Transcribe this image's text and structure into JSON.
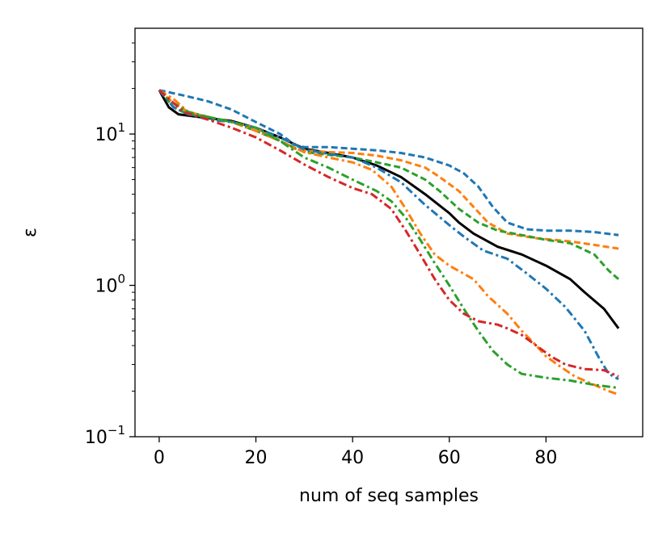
{
  "chart_data": {
    "type": "line",
    "title": "",
    "xlabel": "num of seq samples",
    "ylabel": "ε",
    "xlim": [
      -5,
      100
    ],
    "ylim": [
      0.1,
      50
    ],
    "yscale": "log",
    "grid": false,
    "x_ticks": [
      0,
      20,
      40,
      60,
      80
    ],
    "y_ticks": [
      {
        "value": 0.1,
        "base": "10",
        "exp": "−1"
      },
      {
        "value": 1,
        "base": "10",
        "exp": "0"
      },
      {
        "value": 10,
        "base": "10",
        "exp": "1"
      }
    ],
    "series": [
      {
        "name": "solid-black",
        "color": "#000000",
        "dash": "solid",
        "points": [
          [
            0,
            19.5
          ],
          [
            2,
            15
          ],
          [
            4,
            13.5
          ],
          [
            8,
            13
          ],
          [
            15,
            12.2
          ],
          [
            20,
            11
          ],
          [
            25,
            9.5
          ],
          [
            30,
            8
          ],
          [
            35,
            7.5
          ],
          [
            40,
            7
          ],
          [
            45,
            6.2
          ],
          [
            50,
            5.2
          ],
          [
            55,
            4
          ],
          [
            60,
            3
          ],
          [
            62,
            2.6
          ],
          [
            65,
            2.2
          ],
          [
            70,
            1.8
          ],
          [
            75,
            1.6
          ],
          [
            80,
            1.35
          ],
          [
            85,
            1.1
          ],
          [
            88,
            0.9
          ],
          [
            92,
            0.7
          ],
          [
            95,
            0.52
          ]
        ]
      },
      {
        "name": "blue-dashed",
        "color": "#1f77b4",
        "dash": "dashed",
        "points": [
          [
            0,
            19.5
          ],
          [
            5,
            18
          ],
          [
            10,
            16.5
          ],
          [
            15,
            14.5
          ],
          [
            20,
            12
          ],
          [
            25,
            10
          ],
          [
            28,
            8.5
          ],
          [
            30,
            8.2
          ],
          [
            35,
            8.2
          ],
          [
            40,
            8
          ],
          [
            45,
            7.8
          ],
          [
            50,
            7.5
          ],
          [
            55,
            7
          ],
          [
            60,
            6.2
          ],
          [
            63,
            5.5
          ],
          [
            66,
            4.5
          ],
          [
            69,
            3.3
          ],
          [
            72,
            2.6
          ],
          [
            76,
            2.35
          ],
          [
            80,
            2.3
          ],
          [
            85,
            2.3
          ],
          [
            90,
            2.25
          ],
          [
            95,
            2.15
          ]
        ]
      },
      {
        "name": "orange-dashed",
        "color": "#ff7f0e",
        "dash": "dashed",
        "points": [
          [
            0,
            19.5
          ],
          [
            3,
            16
          ],
          [
            6,
            14
          ],
          [
            10,
            13
          ],
          [
            15,
            12
          ],
          [
            20,
            11
          ],
          [
            25,
            9
          ],
          [
            28,
            8
          ],
          [
            30,
            7.8
          ],
          [
            35,
            7.6
          ],
          [
            40,
            7.5
          ],
          [
            45,
            7.2
          ],
          [
            50,
            6.7
          ],
          [
            55,
            6
          ],
          [
            58,
            5.2
          ],
          [
            62,
            4.2
          ],
          [
            65,
            3.3
          ],
          [
            68,
            2.6
          ],
          [
            72,
            2.2
          ],
          [
            78,
            2.05
          ],
          [
            85,
            1.95
          ],
          [
            90,
            1.85
          ],
          [
            95,
            1.75
          ]
        ]
      },
      {
        "name": "green-dashed",
        "color": "#2ca02c",
        "dash": "dashed",
        "points": [
          [
            0,
            19.5
          ],
          [
            3,
            15
          ],
          [
            6,
            13.5
          ],
          [
            10,
            13
          ],
          [
            15,
            12
          ],
          [
            20,
            10.5
          ],
          [
            25,
            9
          ],
          [
            30,
            7.6
          ],
          [
            35,
            7.3
          ],
          [
            40,
            7
          ],
          [
            45,
            6.5
          ],
          [
            50,
            6
          ],
          [
            55,
            5
          ],
          [
            58,
            4.2
          ],
          [
            62,
            3.2
          ],
          [
            66,
            2.6
          ],
          [
            70,
            2.3
          ],
          [
            75,
            2.15
          ],
          [
            80,
            2
          ],
          [
            85,
            1.9
          ],
          [
            90,
            1.6
          ],
          [
            93,
            1.25
          ],
          [
            95,
            1.1
          ]
        ]
      },
      {
        "name": "blue-dashdot",
        "color": "#1f77b4",
        "dash": "dashdot",
        "points": [
          [
            0,
            19.5
          ],
          [
            3,
            15
          ],
          [
            6,
            13.5
          ],
          [
            10,
            12.5
          ],
          [
            15,
            12
          ],
          [
            20,
            11
          ],
          [
            25,
            9.5
          ],
          [
            30,
            7.9
          ],
          [
            35,
            7.4
          ],
          [
            40,
            7
          ],
          [
            45,
            6
          ],
          [
            50,
            4.8
          ],
          [
            55,
            3.4
          ],
          [
            60,
            2.5
          ],
          [
            63,
            2.1
          ],
          [
            67,
            1.7
          ],
          [
            72,
            1.5
          ],
          [
            76,
            1.2
          ],
          [
            80,
            0.95
          ],
          [
            84,
            0.72
          ],
          [
            88,
            0.5
          ],
          [
            91,
            0.33
          ],
          [
            93,
            0.26
          ],
          [
            95,
            0.24
          ]
        ]
      },
      {
        "name": "orange-dashdot",
        "color": "#ff7f0e",
        "dash": "dashdot",
        "points": [
          [
            0,
            19.5
          ],
          [
            3,
            17
          ],
          [
            6,
            14
          ],
          [
            10,
            13
          ],
          [
            15,
            12
          ],
          [
            20,
            10.5
          ],
          [
            25,
            9
          ],
          [
            30,
            7.6
          ],
          [
            35,
            7
          ],
          [
            40,
            6.5
          ],
          [
            44,
            5.8
          ],
          [
            48,
            4.5
          ],
          [
            51,
            3.2
          ],
          [
            54,
            2.2
          ],
          [
            57,
            1.6
          ],
          [
            60,
            1.35
          ],
          [
            65,
            1.1
          ],
          [
            68,
            0.85
          ],
          [
            72,
            0.65
          ],
          [
            75,
            0.5
          ],
          [
            78,
            0.4
          ],
          [
            80,
            0.34
          ],
          [
            83,
            0.29
          ],
          [
            86,
            0.25
          ],
          [
            90,
            0.22
          ],
          [
            93,
            0.2
          ],
          [
            95,
            0.19
          ]
        ]
      },
      {
        "name": "green-dashdot",
        "color": "#2ca02c",
        "dash": "dashdot",
        "points": [
          [
            0,
            19.5
          ],
          [
            3,
            16
          ],
          [
            6,
            14
          ],
          [
            10,
            13
          ],
          [
            15,
            12
          ],
          [
            20,
            11
          ],
          [
            25,
            9
          ],
          [
            30,
            7
          ],
          [
            35,
            6
          ],
          [
            40,
            5
          ],
          [
            45,
            4.2
          ],
          [
            48,
            3.6
          ],
          [
            51,
            2.8
          ],
          [
            54,
            2
          ],
          [
            57,
            1.4
          ],
          [
            60,
            1
          ],
          [
            63,
            0.7
          ],
          [
            66,
            0.5
          ],
          [
            69,
            0.37
          ],
          [
            72,
            0.3
          ],
          [
            75,
            0.26
          ],
          [
            80,
            0.245
          ],
          [
            85,
            0.235
          ],
          [
            90,
            0.22
          ],
          [
            95,
            0.21
          ]
        ]
      },
      {
        "name": "red-dashdot",
        "color": "#d62728",
        "dash": "dashdot",
        "points": [
          [
            0,
            19.5
          ],
          [
            5,
            14
          ],
          [
            10,
            12.5
          ],
          [
            15,
            11
          ],
          [
            20,
            9.5
          ],
          [
            25,
            7.8
          ],
          [
            30,
            6.3
          ],
          [
            35,
            5.2
          ],
          [
            40,
            4.4
          ],
          [
            44,
            4
          ],
          [
            48,
            3.2
          ],
          [
            51,
            2.3
          ],
          [
            54,
            1.6
          ],
          [
            57,
            1.1
          ],
          [
            60,
            0.8
          ],
          [
            63,
            0.65
          ],
          [
            66,
            0.58
          ],
          [
            70,
            0.55
          ],
          [
            72,
            0.52
          ],
          [
            75,
            0.47
          ],
          [
            78,
            0.4
          ],
          [
            81,
            0.34
          ],
          [
            84,
            0.3
          ],
          [
            88,
            0.28
          ],
          [
            92,
            0.275
          ],
          [
            95,
            0.25
          ]
        ]
      }
    ]
  }
}
